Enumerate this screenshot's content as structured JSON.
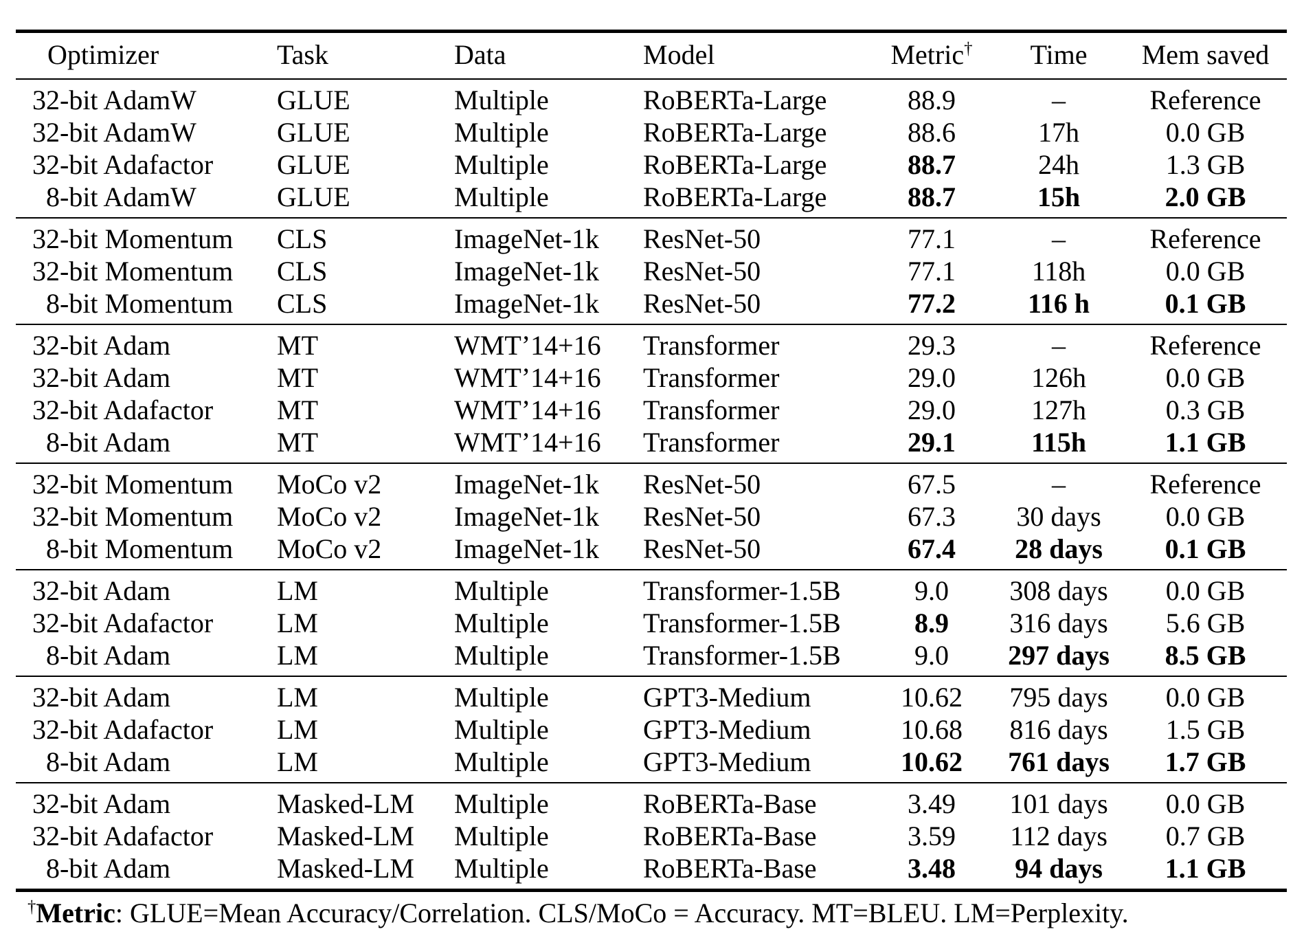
{
  "table": {
    "columns": [
      {
        "key": "optimizer",
        "label": "Optimizer"
      },
      {
        "key": "task",
        "label": "Task"
      },
      {
        "key": "data",
        "label": "Data"
      },
      {
        "key": "model",
        "label": "Model"
      },
      {
        "key": "metric",
        "label": "Metric",
        "sup": "†"
      },
      {
        "key": "time",
        "label": "Time"
      },
      {
        "key": "mem",
        "label": "Mem saved"
      }
    ],
    "groups": [
      {
        "name": "glue",
        "rows": [
          {
            "optimizer": "32-bit AdamW",
            "task": "GLUE",
            "data": "Multiple",
            "model": "RoBERTa-Large",
            "metric": "88.9",
            "time": "–",
            "mem": "Reference",
            "bold": []
          },
          {
            "optimizer": "32-bit AdamW",
            "task": "GLUE",
            "data": "Multiple",
            "model": "RoBERTa-Large",
            "metric": "88.6",
            "time": "17h",
            "mem": "0.0 GB",
            "bold": []
          },
          {
            "optimizer": "32-bit Adafactor",
            "task": "GLUE",
            "data": "Multiple",
            "model": "RoBERTa-Large",
            "metric": "88.7",
            "time": "24h",
            "mem": "1.3 GB",
            "bold": [
              "metric"
            ]
          },
          {
            "optimizer": "8-bit AdamW",
            "task": "GLUE",
            "data": "Multiple",
            "model": "RoBERTa-Large",
            "metric": "88.7",
            "time": "15h",
            "mem": "2.0 GB",
            "bold": [
              "metric",
              "time",
              "mem"
            ]
          }
        ]
      },
      {
        "name": "cls",
        "rows": [
          {
            "optimizer": "32-bit Momentum",
            "task": "CLS",
            "data": "ImageNet-1k",
            "model": "ResNet-50",
            "metric": "77.1",
            "time": "–",
            "mem": "Reference",
            "bold": []
          },
          {
            "optimizer": "32-bit Momentum",
            "task": "CLS",
            "data": "ImageNet-1k",
            "model": "ResNet-50",
            "metric": "77.1",
            "time": "118h",
            "mem": "0.0 GB",
            "bold": []
          },
          {
            "optimizer": "8-bit Momentum",
            "task": "CLS",
            "data": "ImageNet-1k",
            "model": "ResNet-50",
            "metric": "77.2",
            "time": "116 h",
            "mem": "0.1 GB",
            "bold": [
              "metric",
              "time",
              "mem"
            ]
          }
        ]
      },
      {
        "name": "mt",
        "rows": [
          {
            "optimizer": "32-bit Adam",
            "task": "MT",
            "data": "WMT’14+16",
            "model": "Transformer",
            "metric": "29.3",
            "time": "–",
            "mem": "Reference",
            "bold": []
          },
          {
            "optimizer": "32-bit Adam",
            "task": "MT",
            "data": "WMT’14+16",
            "model": "Transformer",
            "metric": "29.0",
            "time": "126h",
            "mem": "0.0 GB",
            "bold": []
          },
          {
            "optimizer": "32-bit Adafactor",
            "task": "MT",
            "data": "WMT’14+16",
            "model": "Transformer",
            "metric": "29.0",
            "time": "127h",
            "mem": "0.3 GB",
            "bold": []
          },
          {
            "optimizer": "8-bit Adam",
            "task": "MT",
            "data": "WMT’14+16",
            "model": "Transformer",
            "metric": "29.1",
            "time": "115h",
            "mem": "1.1 GB",
            "bold": [
              "metric",
              "time",
              "mem"
            ]
          }
        ]
      },
      {
        "name": "moco",
        "rows": [
          {
            "optimizer": "32-bit Momentum",
            "task": "MoCo v2",
            "data": "ImageNet-1k",
            "model": "ResNet-50",
            "metric": "67.5",
            "time": "–",
            "mem": "Reference",
            "bold": []
          },
          {
            "optimizer": "32-bit Momentum",
            "task": "MoCo v2",
            "data": "ImageNet-1k",
            "model": "ResNet-50",
            "metric": "67.3",
            "time": "30 days",
            "mem": "0.0 GB",
            "bold": []
          },
          {
            "optimizer": "8-bit Momentum",
            "task": "MoCo v2",
            "data": "ImageNet-1k",
            "model": "ResNet-50",
            "metric": "67.4",
            "time": "28 days",
            "mem": "0.1 GB",
            "bold": [
              "metric",
              "time",
              "mem"
            ]
          }
        ]
      },
      {
        "name": "lm-1-5b",
        "rows": [
          {
            "optimizer": "32-bit Adam",
            "task": "LM",
            "data": "Multiple",
            "model": "Transformer-1.5B",
            "metric": "9.0",
            "time": "308 days",
            "mem": "0.0 GB",
            "bold": []
          },
          {
            "optimizer": "32-bit Adafactor",
            "task": "LM",
            "data": "Multiple",
            "model": "Transformer-1.5B",
            "metric": "8.9",
            "time": "316 days",
            "mem": "5.6 GB",
            "bold": [
              "metric"
            ]
          },
          {
            "optimizer": "8-bit Adam",
            "task": "LM",
            "data": "Multiple",
            "model": "Transformer-1.5B",
            "metric": "9.0",
            "time": "297 days",
            "mem": "8.5 GB",
            "bold": [
              "time",
              "mem"
            ]
          }
        ]
      },
      {
        "name": "lm-gpt3",
        "rows": [
          {
            "optimizer": "32-bit Adam",
            "task": "LM",
            "data": "Multiple",
            "model": "GPT3-Medium",
            "metric": "10.62",
            "time": "795 days",
            "mem": "0.0 GB",
            "bold": []
          },
          {
            "optimizer": "32-bit Adafactor",
            "task": "LM",
            "data": "Multiple",
            "model": "GPT3-Medium",
            "metric": "10.68",
            "time": "816 days",
            "mem": "1.5 GB",
            "bold": []
          },
          {
            "optimizer": "8-bit Adam",
            "task": "LM",
            "data": "Multiple",
            "model": "GPT3-Medium",
            "metric": "10.62",
            "time": "761 days",
            "mem": "1.7 GB",
            "bold": [
              "metric",
              "time",
              "mem"
            ]
          }
        ]
      },
      {
        "name": "masked-lm",
        "rows": [
          {
            "optimizer": "32-bit Adam",
            "task": "Masked-LM",
            "data": "Multiple",
            "model": "RoBERTa-Base",
            "metric": "3.49",
            "time": "101 days",
            "mem": "0.0 GB",
            "bold": []
          },
          {
            "optimizer": "32-bit Adafactor",
            "task": "Masked-LM",
            "data": "Multiple",
            "model": "RoBERTa-Base",
            "metric": "3.59",
            "time": "112 days",
            "mem": "0.7 GB",
            "bold": []
          },
          {
            "optimizer": "8-bit Adam",
            "task": "Masked-LM",
            "data": "Multiple",
            "model": "RoBERTa-Base",
            "metric": "3.48",
            "time": "94 days",
            "mem": "1.1 GB",
            "bold": [
              "metric",
              "time",
              "mem"
            ]
          }
        ]
      }
    ]
  },
  "footnote": {
    "sup": "†",
    "bold": "Metric",
    "text": ": GLUE=Mean Accuracy/Correlation. CLS/MoCo = Accuracy. MT=BLEU. LM=Perplexity."
  }
}
